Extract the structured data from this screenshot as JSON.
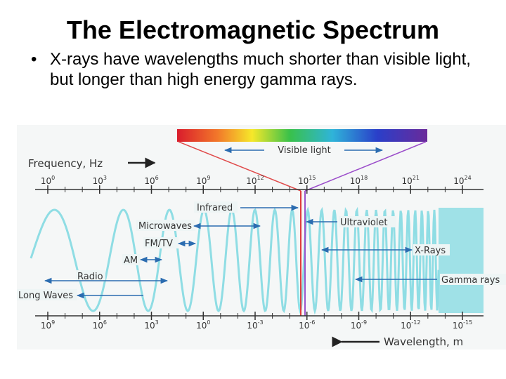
{
  "slide": {
    "title": "The Electromagnetic Spectrum",
    "bullet_symbol": "•",
    "bullet": "X-rays have wavelengths much shorter than visible light, but longer than high energy gamma rays."
  },
  "diagram": {
    "frequency_axis_label": "Frequency, Hz",
    "frequency_ticks": [
      {
        "base": "10",
        "exp": "0"
      },
      {
        "base": "10",
        "exp": "3"
      },
      {
        "base": "10",
        "exp": "6"
      },
      {
        "base": "10",
        "exp": "9"
      },
      {
        "base": "10",
        "exp": "12"
      },
      {
        "base": "10",
        "exp": "15"
      },
      {
        "base": "10",
        "exp": "18"
      },
      {
        "base": "10",
        "exp": "21"
      },
      {
        "base": "10",
        "exp": "24"
      }
    ],
    "wavelength_axis_label": "Wavelength, m",
    "wavelength_ticks": [
      {
        "base": "10",
        "exp": "9"
      },
      {
        "base": "10",
        "exp": "6"
      },
      {
        "base": "10",
        "exp": "3"
      },
      {
        "base": "10",
        "exp": "0"
      },
      {
        "base": "10",
        "exp": "-3"
      },
      {
        "base": "10",
        "exp": "-6"
      },
      {
        "base": "10",
        "exp": "-9"
      },
      {
        "base": "10",
        "exp": "-12"
      },
      {
        "base": "10",
        "exp": "-15"
      }
    ],
    "visible_light_label": "Visible light",
    "bands": {
      "infrared": "Infrared",
      "microwaves": "Microwaves",
      "fm_tv": "FM/TV",
      "am": "AM",
      "radio": "Radio",
      "long_waves": "Long Waves",
      "ultraviolet": "Ultraviolet",
      "x_rays": "X-Rays",
      "gamma_rays": "Gamma rays"
    },
    "colors": {
      "wave": "#8fdde4",
      "label_bg": "#e8f4f4",
      "arrow": "#2b6cb0",
      "axis": "#333333",
      "cone_red": "#e04a4a",
      "cone_purple": "#9b4dca",
      "visible_marker_red": "#e03c3c",
      "visible_marker_purple": "#9955cc"
    }
  }
}
